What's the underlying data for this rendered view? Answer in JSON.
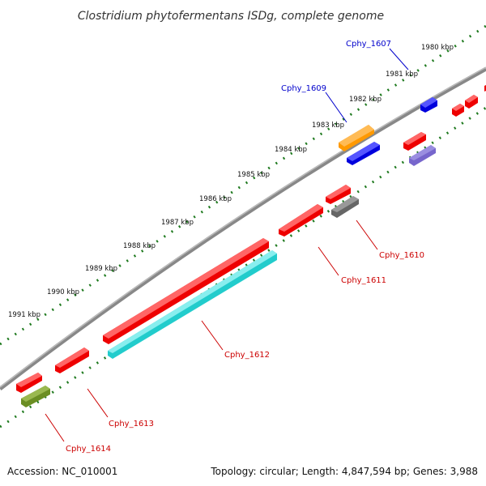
{
  "title": "Clostridium phytofermentans ISDg, complete genome",
  "footer": {
    "accession": "Accession: NC_010001",
    "summary": "Topology: circular; Length: 4,847,594 bp; Genes: 3,988"
  },
  "ticks": [
    "1980 kbp",
    "1981 kbp",
    "1982 kbp",
    "1983 kbp",
    "1984 kbp",
    "1985 kbp",
    "1986 kbp",
    "1987 kbp",
    "1988 kbp",
    "1989 kbp",
    "1990 kbp",
    "1991 kbp"
  ],
  "gene_labels": {
    "cphy_1607": "Cphy_1607",
    "cphy_1609": "Cphy_1609",
    "cphy_1610": "Cphy_1610",
    "cphy_1611": "Cphy_1611",
    "cphy_1612": "Cphy_1612",
    "cphy_1613": "Cphy_1613",
    "cphy_1614": "Cphy_1614"
  },
  "colors": {
    "backbone": "#888888",
    "dots": "#1f7a1f",
    "label_blue": "#0000cc",
    "label_red": "#cc0000",
    "red": "#ee0000",
    "cyan": "#22cccc",
    "blue": "#0000dd",
    "orange": "#ff9900",
    "gray": "#666666",
    "purple": "#7766cc",
    "olive": "#6b8e23"
  }
}
